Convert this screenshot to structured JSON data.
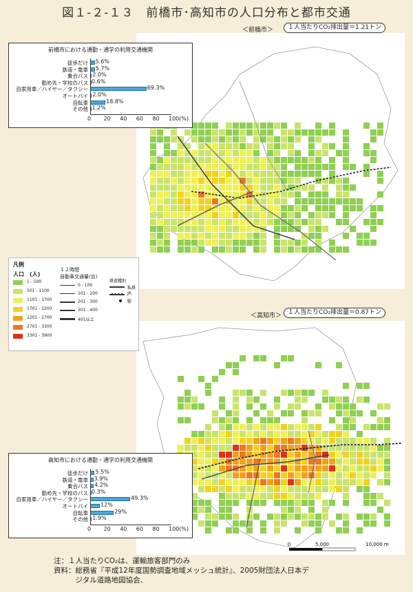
{
  "title": "図１-２-１３　前橋市･高知市の人口分布と都市交通",
  "maebashi": {
    "map_label": "＜前橋市＞",
    "co2": "１人当たりCO₂排出量＝1.21トン",
    "chart": {
      "title": "前橋市における通勤・通学の利用交通機関",
      "categories": [
        "徒歩だけ",
        "鉄道・電車",
        "乗合バス",
        "勤め先・学校のバス",
        "自家用車／ハイヤー／タクシー",
        "オートバイ",
        "自転車",
        "その他"
      ],
      "values": [
        5.6,
        5.7,
        2.0,
        0.6,
        69.3,
        2.0,
        18.8,
        1.2
      ],
      "value_labels": [
        "5.6%",
        "5.7%",
        "2.0%",
        "0.6%",
        "69.3%",
        "2.0%",
        "18.8%",
        "1.2%"
      ],
      "ticks": [
        "0",
        "20",
        "40",
        "60",
        "80",
        "100(%)"
      ],
      "xlim": [
        0,
        100
      ]
    }
  },
  "kochi": {
    "map_label": "＜高知市＞",
    "co2": "１人当たりCO₂排出量＝0.87トン",
    "chart": {
      "title": "高知市における通勤・通学の利用交通機関",
      "categories": [
        "徒歩だけ",
        "鉄道・電車",
        "乗合バス",
        "勤め先・学校のバス",
        "自家用車／ハイヤー／タクシー",
        "オートバイ",
        "自転車",
        "その他"
      ],
      "values": [
        5.5,
        3.9,
        4.2,
        0.3,
        49.3,
        12,
        29,
        1.9
      ],
      "value_labels": [
        "5.5%",
        "3.9%",
        "4.2%",
        "0.3%",
        "49.3%",
        "12%",
        "29%",
        "1.9%"
      ],
      "ticks": [
        "0",
        "20",
        "40",
        "60",
        "80",
        "100(%)"
      ],
      "xlim": [
        0,
        100
      ]
    }
  },
  "legend": {
    "title": "凡例",
    "pop_header": "人口　(人)",
    "pop_classes": [
      {
        "label": "1 - 500",
        "color": "#8fcf52"
      },
      {
        "label": "501 - 1100",
        "color": "#c9e46a"
      },
      {
        "label": "1101 - 1700",
        "color": "#eef058"
      },
      {
        "label": "1701 - 2200",
        "color": "#f2d21f"
      },
      {
        "label": "2201 - 2700",
        "color": "#f2a21a"
      },
      {
        "label": "2701 - 3300",
        "color": "#ec7a1c"
      },
      {
        "label": "3301 - 3900",
        "color": "#e0311f"
      }
    ],
    "traffic_header1": "１２時間",
    "traffic_header2": "自動車交通量(台)",
    "traffic_classes": [
      "0 - 100",
      "101 - 200",
      "201 - 300",
      "301 - 400",
      "401以上"
    ],
    "rail_header": "鉄道種別",
    "rail_items": [
      "私鉄",
      "JR",
      "駅"
    ]
  },
  "scale": {
    "labels": [
      "0",
      "5,000",
      "10,000 m"
    ]
  },
  "notes": {
    "line1": "注：１人当たりCO₂は、運輸旅客部門のみ",
    "line2": "資料：総務省『平成12年度国勢調査地域メッシュ統計』、2005財団法人日本デ",
    "line3": "　　　ジタル道路地図協会、"
  }
}
